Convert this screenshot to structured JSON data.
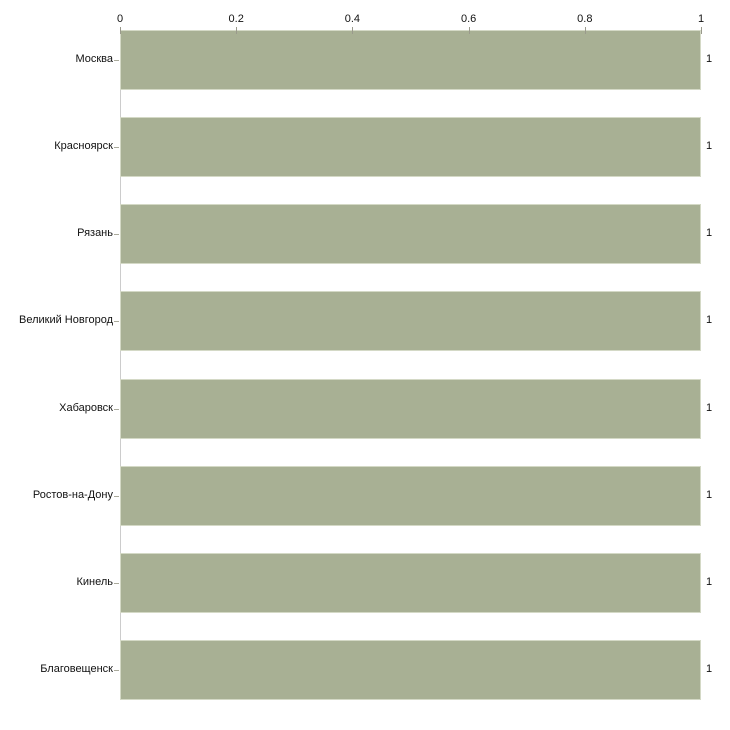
{
  "chart_data": {
    "type": "bar",
    "orientation": "horizontal",
    "title": "",
    "xlabel": "",
    "ylabel": "",
    "categories": [
      "Москва",
      "Красноярск",
      "Рязань",
      "Великий Новгород",
      "Хабаровск",
      "Ростов-на-Дону",
      "Кинель",
      "Благовещенск"
    ],
    "values": [
      1,
      1,
      1,
      1,
      1,
      1,
      1,
      1
    ],
    "value_labels": [
      "1",
      "1",
      "1",
      "1",
      "1",
      "1",
      "1",
      "1"
    ],
    "x_ticks": [
      {
        "label": "0",
        "value": 0
      },
      {
        "label": "0.2",
        "value": 0.2
      },
      {
        "label": "0.4",
        "value": 0.4
      },
      {
        "label": "0.6",
        "value": 0.6
      },
      {
        "label": "0.8",
        "value": 0.8
      },
      {
        "label": "1",
        "value": 1
      }
    ],
    "xlim": [
      0,
      1
    ],
    "grid": "off",
    "legend": "none",
    "colors": {
      "bar_fill": "#a8b094",
      "bar_border": "#d4d9c6",
      "axis_line": "#cccccc",
      "tick_mark": "#9a9a8c",
      "text": "#111111",
      "background": "#ffffff"
    }
  }
}
